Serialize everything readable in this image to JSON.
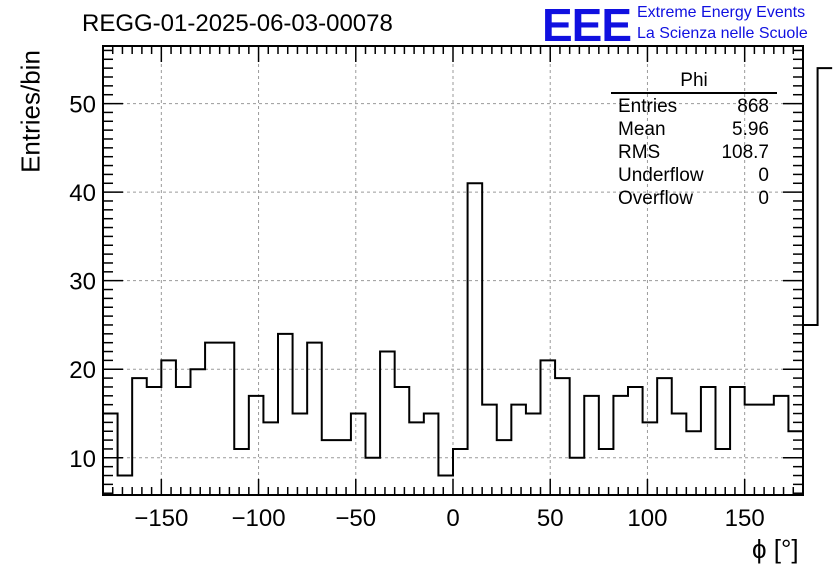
{
  "title": "REGG-01-2025-06-03-00078",
  "logo": {
    "mark": "EEE",
    "line1": "Extreme Energy Events",
    "line2": "La Scienza nelle Scuole",
    "color": "#1010e0"
  },
  "stats": {
    "name": "Phi",
    "rows": [
      {
        "label": "Entries",
        "value": "868"
      },
      {
        "label": "Mean",
        "value": "5.96"
      },
      {
        "label": "RMS",
        "value": "108.7"
      },
      {
        "label": "Underflow",
        "value": "0"
      },
      {
        "label": "Overflow",
        "value": "0"
      }
    ]
  },
  "chart_data": {
    "type": "bar",
    "title": "REGG-01-2025-06-03-00078",
    "xlabel": "ϕ [°]",
    "ylabel": "Entries/bin",
    "xlim": [
      -180,
      180
    ],
    "ylim": [
      5.8,
      56.5
    ],
    "bin_width": 7.5,
    "bin_edges_start": -180,
    "grid": true,
    "xticks": [
      -150,
      -100,
      -50,
      0,
      50,
      100,
      150
    ],
    "xtick_labels": [
      "−150",
      "−100",
      "−50",
      "0",
      "50",
      "100",
      "150"
    ],
    "yticks": [
      10,
      20,
      30,
      40,
      50
    ],
    "ytick_labels": [
      "10",
      "20",
      "30",
      "40",
      "50"
    ],
    "values": [
      15,
      8,
      19,
      18,
      21,
      18,
      20,
      23,
      23,
      11,
      17,
      14,
      24,
      15,
      23,
      12,
      12,
      15,
      10,
      22,
      18,
      14,
      15,
      8,
      11,
      41,
      16,
      12,
      16,
      15,
      21,
      19,
      10,
      17,
      11,
      17,
      18,
      14,
      19,
      15,
      13,
      18,
      11,
      18,
      16,
      16,
      17,
      13,
      25,
      54
    ]
  }
}
